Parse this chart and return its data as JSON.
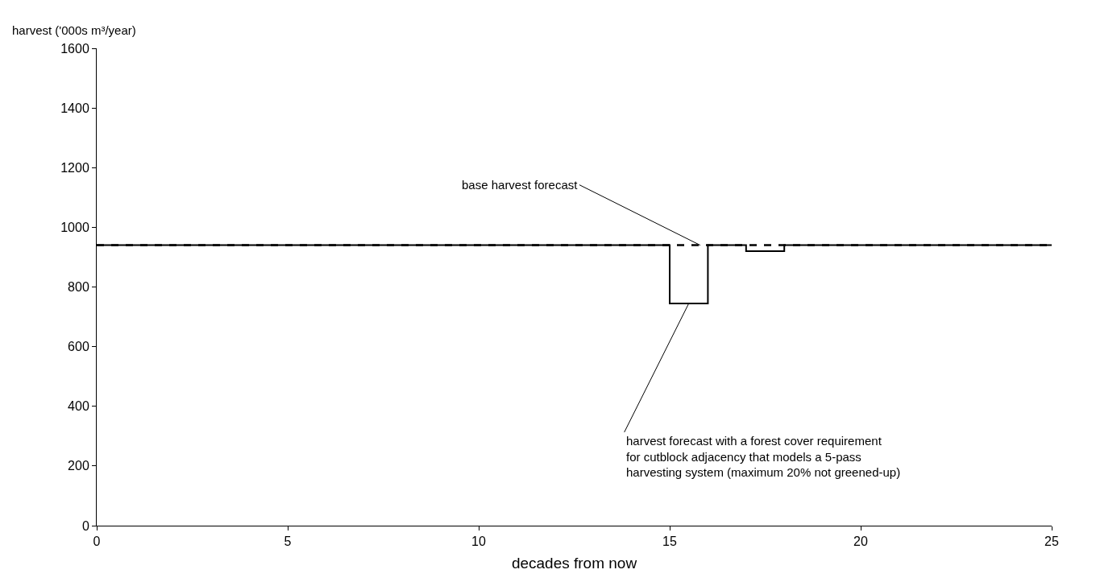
{
  "chart_data": {
    "type": "step",
    "ylabel": "harvest ('000s m³/year)",
    "xlabel": "decades from now",
    "xlim": [
      0,
      25
    ],
    "xticks": [
      0,
      5,
      10,
      15,
      20,
      25
    ],
    "ylim": [
      0,
      1600
    ],
    "yticks": [
      0,
      200,
      400,
      600,
      800,
      1000,
      1200,
      1400,
      1600
    ],
    "marker": "none",
    "series": [
      {
        "color": "#000000",
        "line_style": "dashed",
        "x": [
          0,
          25
        ],
        "values": [
          940,
          940
        ]
      },
      {
        "color": "#000000",
        "line_style": "solid",
        "x": [
          0,
          15,
          16,
          17,
          18,
          25
        ],
        "values": [
          940,
          745,
          940,
          920,
          940,
          940
        ]
      }
    ],
    "annotations": [
      {
        "text": "base harvest forecast",
        "x": 15.8,
        "y": 940
      },
      {
        "text": "harvest forecast with a forest cover requirement\nfor cutblock adjacency that models a 5-pass\nharvesting system (maximum 20% not greened-up)",
        "x": 15.5,
        "y": 745
      }
    ]
  }
}
